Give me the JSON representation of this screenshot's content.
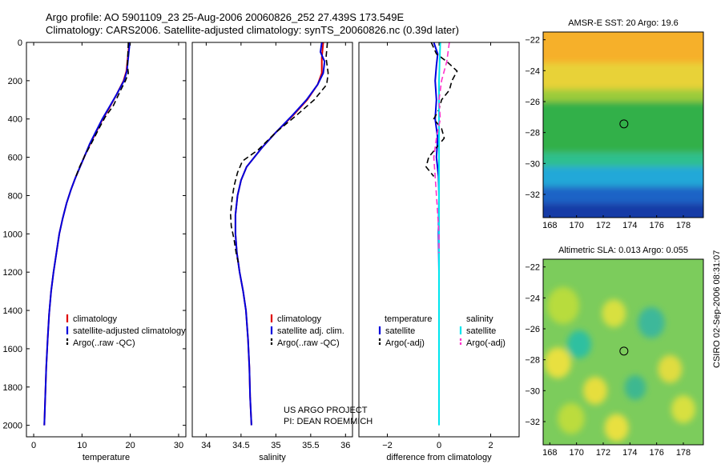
{
  "header": {
    "line1": "Argo profile: AO 5901109_23 25-Aug-2006 20060826_252 27.439S 173.549E",
    "line2": "Climatology: CARS2006. Satellite-adjusted climatology: synTS_20060826.nc (0.39d later)"
  },
  "credit": {
    "line1": "US ARGO PROJECT",
    "line2": "PI: DEAN ROEMMICH"
  },
  "side_stamp": "CSIRO 02-Sep-2006 08:31:07",
  "colors": {
    "climatology": "#e00000",
    "satellite": "#0000dd",
    "argo": "#000000",
    "sat_diff": "#00e5ee",
    "argo_adj": "#ff33cc"
  },
  "chart_data": [
    {
      "id": "temperature",
      "type": "line",
      "xlabel": "temperature",
      "ylabel": "",
      "xlim": [
        -1.5,
        31.5
      ],
      "ylim": [
        2060,
        0
      ],
      "xticks": [
        0,
        10,
        20,
        30
      ],
      "yticks": [
        0,
        200,
        400,
        600,
        800,
        1000,
        1200,
        1400,
        1600,
        1800,
        2000
      ],
      "legend": {
        "position": "lower-right",
        "entries": [
          "climatology",
          "satellite-adjusted climatology",
          "Argo(..raw -QC)"
        ]
      },
      "series": [
        {
          "name": "climatology",
          "color": "#e00000",
          "dash": "",
          "points": [
            [
              19.8,
              0
            ],
            [
              19.6,
              50
            ],
            [
              19.4,
              100
            ],
            [
              19.2,
              150
            ],
            [
              18.6,
              200
            ],
            [
              17.2,
              270
            ],
            [
              15.7,
              340
            ],
            [
              14.3,
              400
            ],
            [
              12.9,
              470
            ],
            [
              11.7,
              530
            ],
            [
              10.6,
              590
            ],
            [
              9.6,
              650
            ],
            [
              8.6,
              710
            ],
            [
              7.7,
              770
            ],
            [
              6.8,
              840
            ],
            [
              6.0,
              920
            ],
            [
              5.3,
              1000
            ],
            [
              4.7,
              1100
            ],
            [
              4.1,
              1200
            ],
            [
              3.6,
              1300
            ],
            [
              3.2,
              1420
            ],
            [
              2.9,
              1550
            ],
            [
              2.6,
              1700
            ],
            [
              2.4,
              1850
            ],
            [
              2.2,
              2000
            ]
          ]
        },
        {
          "name": "satellite-adjusted climatology",
          "color": "#0000dd",
          "dash": "",
          "points": [
            [
              19.9,
              0
            ],
            [
              19.7,
              50
            ],
            [
              19.5,
              100
            ],
            [
              19.3,
              150
            ],
            [
              18.7,
              200
            ],
            [
              17.2,
              270
            ],
            [
              15.6,
              340
            ],
            [
              14.2,
              400
            ],
            [
              12.8,
              470
            ],
            [
              11.6,
              530
            ],
            [
              10.6,
              590
            ],
            [
              9.6,
              650
            ],
            [
              8.6,
              710
            ],
            [
              7.7,
              770
            ],
            [
              6.8,
              840
            ],
            [
              6.0,
              920
            ],
            [
              5.3,
              1000
            ],
            [
              4.7,
              1100
            ],
            [
              4.1,
              1200
            ],
            [
              3.6,
              1300
            ],
            [
              3.2,
              1420
            ],
            [
              2.9,
              1550
            ],
            [
              2.6,
              1700
            ],
            [
              2.4,
              1850
            ],
            [
              2.2,
              2000
            ]
          ]
        },
        {
          "name": "Argo(..raw -QC)",
          "color": "#000000",
          "dash": "7,4",
          "points": [
            [
              19.6,
              0
            ],
            [
              19.5,
              60
            ],
            [
              19.4,
              120
            ],
            [
              19.6,
              160
            ],
            [
              19.0,
              200
            ],
            [
              18.0,
              250
            ],
            [
              16.5,
              330
            ],
            [
              14.8,
              390
            ],
            [
              13.5,
              450
            ],
            [
              12.1,
              520
            ],
            [
              10.6,
              590
            ],
            [
              9.5,
              650
            ],
            [
              8.6,
              710
            ]
          ]
        }
      ]
    },
    {
      "id": "salinity",
      "type": "line",
      "xlabel": "salinity",
      "ylabel": "",
      "xlim": [
        33.8,
        36.1
      ],
      "ylim": [
        2060,
        0
      ],
      "xticks": [
        34,
        34.5,
        35,
        35.5,
        36
      ],
      "yticks": [],
      "legend": {
        "position": "lower-right",
        "entries": [
          "climatology",
          "satellite adj. clim.",
          "Argo(..raw -QC)"
        ]
      },
      "series": [
        {
          "name": "climatology",
          "color": "#e00000",
          "dash": "",
          "points": [
            [
              35.68,
              0
            ],
            [
              35.66,
              80
            ],
            [
              35.66,
              160
            ],
            [
              35.6,
              220
            ],
            [
              35.45,
              300
            ],
            [
              35.25,
              380
            ],
            [
              35.0,
              470
            ],
            [
              34.8,
              550
            ],
            [
              34.58,
              650
            ],
            [
              34.5,
              720
            ],
            [
              34.45,
              800
            ],
            [
              34.42,
              900
            ],
            [
              34.42,
              1000
            ],
            [
              34.44,
              1100
            ],
            [
              34.48,
              1200
            ],
            [
              34.53,
              1300
            ],
            [
              34.57,
              1400
            ],
            [
              34.6,
              1550
            ],
            [
              34.62,
              1700
            ],
            [
              34.63,
              1850
            ],
            [
              34.65,
              2000
            ]
          ]
        },
        {
          "name": "satellite adj. clim.",
          "color": "#0000dd",
          "dash": "",
          "points": [
            [
              35.66,
              0
            ],
            [
              35.64,
              50
            ],
            [
              35.7,
              100
            ],
            [
              35.68,
              160
            ],
            [
              35.6,
              220
            ],
            [
              35.44,
              300
            ],
            [
              35.24,
              380
            ],
            [
              35.0,
              470
            ],
            [
              34.8,
              550
            ],
            [
              34.58,
              650
            ],
            [
              34.5,
              720
            ],
            [
              34.45,
              800
            ],
            [
              34.42,
              900
            ],
            [
              34.42,
              1000
            ],
            [
              34.44,
              1100
            ],
            [
              34.48,
              1200
            ],
            [
              34.53,
              1300
            ],
            [
              34.57,
              1400
            ],
            [
              34.6,
              1550
            ],
            [
              34.62,
              1700
            ],
            [
              34.63,
              1850
            ],
            [
              34.65,
              2000
            ]
          ]
        },
        {
          "name": "Argo(..raw -QC)",
          "color": "#000000",
          "dash": "7,4",
          "points": [
            [
              35.74,
              0
            ],
            [
              35.72,
              80
            ],
            [
              35.75,
              160
            ],
            [
              35.73,
              220
            ],
            [
              35.55,
              300
            ],
            [
              35.3,
              380
            ],
            [
              35.0,
              470
            ],
            [
              34.75,
              560
            ],
            [
              34.52,
              620
            ],
            [
              34.45,
              680
            ],
            [
              34.4,
              750
            ],
            [
              34.37,
              820
            ],
            [
              34.35,
              900
            ],
            [
              34.36,
              960
            ],
            [
              34.4,
              1030
            ],
            [
              34.43,
              1100
            ],
            [
              34.46,
              1150
            ]
          ]
        }
      ]
    },
    {
      "id": "difference",
      "type": "line",
      "xlabel": "difference from climatology",
      "ylabel": "",
      "xlim": [
        -3.1,
        3.1
      ],
      "ylim": [
        2060,
        0
      ],
      "xticks": [
        -2,
        0,
        2
      ],
      "yticks": [],
      "legend": {
        "position": "lower-center",
        "headers": [
          "temperature",
          "salinity"
        ],
        "temperature": [
          "satellite",
          "Argo(-adj)"
        ],
        "salinity": [
          "satellite",
          "Argo(-adj)"
        ]
      },
      "series": [
        {
          "name": "temperature satellite",
          "color": "#0000dd",
          "dash": "",
          "points": [
            [
              -0.2,
              0
            ],
            [
              -0.05,
              60
            ],
            [
              -0.1,
              120
            ],
            [
              -0.15,
              200
            ],
            [
              -0.1,
              300
            ],
            [
              -0.15,
              400
            ],
            [
              -0.05,
              500
            ],
            [
              -0.1,
              600
            ],
            [
              -0.02,
              700
            ],
            [
              0.0,
              800
            ],
            [
              -0.02,
              1000
            ],
            [
              0.0,
              1200
            ],
            [
              0.0,
              1400
            ],
            [
              0.0,
              1600
            ],
            [
              0.0,
              1750
            ]
          ]
        },
        {
          "name": "temperature Argo(-adj)",
          "color": "#000000",
          "dash": "7,4",
          "points": [
            [
              -0.3,
              0
            ],
            [
              -0.1,
              60
            ],
            [
              0.3,
              100
            ],
            [
              0.7,
              150
            ],
            [
              0.5,
              200
            ],
            [
              0.4,
              250
            ],
            [
              0.1,
              300
            ],
            [
              0.0,
              350
            ],
            [
              -0.2,
              400
            ],
            [
              0.1,
              450
            ],
            [
              0.2,
              500
            ],
            [
              -0.1,
              550
            ],
            [
              -0.4,
              600
            ],
            [
              -0.5,
              650
            ],
            [
              -0.2,
              700
            ]
          ]
        },
        {
          "name": "salinity satellite",
          "color": "#00e5ee",
          "dash": "",
          "points": [
            [
              0.05,
              0
            ],
            [
              0.0,
              200
            ],
            [
              0.0,
              500
            ],
            [
              0.0,
              800
            ],
            [
              0.0,
              1100
            ],
            [
              0.0,
              1400
            ],
            [
              0.0,
              1700
            ],
            [
              0.0,
              2000
            ]
          ]
        },
        {
          "name": "salinity Argo(-adj)",
          "color": "#ff33cc",
          "dash": "7,4",
          "points": [
            [
              0.4,
              0
            ],
            [
              0.3,
              100
            ],
            [
              0.1,
              200
            ],
            [
              0.0,
              300
            ],
            [
              0.05,
              400
            ],
            [
              -0.1,
              500
            ],
            [
              -0.2,
              600
            ],
            [
              -0.15,
              700
            ],
            [
              -0.1,
              800
            ],
            [
              -0.05,
              900
            ],
            [
              0.0,
              1000
            ],
            [
              0.0,
              1100
            ]
          ]
        }
      ]
    },
    {
      "id": "sst-map",
      "type": "heatmap",
      "title": "AMSR-E SST: 20  Argo: 19.6",
      "xlim": [
        167.5,
        179.5
      ],
      "ylim": [
        -33.5,
        -21.5
      ],
      "xticks": [
        168,
        170,
        172,
        174,
        176,
        178
      ],
      "yticks": [
        -22,
        -24,
        -26,
        -28,
        -30,
        -32
      ],
      "marker": {
        "lon": 173.549,
        "lat": -27.439
      },
      "bands": [
        {
          "lat_from": -21.5,
          "lat_to": -23.5,
          "color": "#f6b02a"
        },
        {
          "lat_from": -23.5,
          "lat_to": -25.2,
          "color": "#e8d238"
        },
        {
          "lat_from": -25.2,
          "lat_to": -26.0,
          "color": "#9ccc3a"
        },
        {
          "lat_from": -26.0,
          "lat_to": -29.3,
          "color": "#32b04a"
        },
        {
          "lat_from": -29.3,
          "lat_to": -30.2,
          "color": "#2ec08e"
        },
        {
          "lat_from": -30.2,
          "lat_to": -31.5,
          "color": "#22a8d8"
        },
        {
          "lat_from": -31.5,
          "lat_to": -32.6,
          "color": "#1e64c6"
        },
        {
          "lat_from": -32.6,
          "lat_to": -33.5,
          "color": "#143aa6"
        }
      ]
    },
    {
      "id": "sla-map",
      "type": "heatmap",
      "title": "Altimetric SLA: 0.013  Argo: 0.055",
      "xlim": [
        167.5,
        179.5
      ],
      "ylim": [
        -33.5,
        -21.5
      ],
      "xticks": [
        168,
        170,
        172,
        174,
        176,
        178
      ],
      "yticks": [
        -22,
        -24,
        -26,
        -28,
        -30,
        -32
      ],
      "marker": {
        "lon": 173.549,
        "lat": -27.439
      },
      "background": "#7ccc5c",
      "blobs": [
        {
          "lon": 169.0,
          "lat": -24.5,
          "r": 1.2,
          "color": "#b8dc3c"
        },
        {
          "lon": 172.8,
          "lat": -25.0,
          "r": 0.9,
          "color": "#d8e040"
        },
        {
          "lon": 175.6,
          "lat": -25.6,
          "r": 1.0,
          "color": "#3cb89a"
        },
        {
          "lon": 170.2,
          "lat": -27.0,
          "r": 0.9,
          "color": "#2ec0a0"
        },
        {
          "lon": 168.6,
          "lat": -28.2,
          "r": 1.0,
          "color": "#e8e040"
        },
        {
          "lon": 177.0,
          "lat": -28.6,
          "r": 0.9,
          "color": "#e0dc40"
        },
        {
          "lon": 171.4,
          "lat": -30.0,
          "r": 0.9,
          "color": "#e6de3e"
        },
        {
          "lon": 174.4,
          "lat": -29.8,
          "r": 0.8,
          "color": "#3cb890"
        },
        {
          "lon": 178.0,
          "lat": -31.2,
          "r": 0.9,
          "color": "#d8e040"
        },
        {
          "lon": 169.6,
          "lat": -31.8,
          "r": 1.0,
          "color": "#bcdc3c"
        },
        {
          "lon": 173.0,
          "lat": -32.4,
          "r": 0.9,
          "color": "#e8e040"
        }
      ]
    }
  ]
}
